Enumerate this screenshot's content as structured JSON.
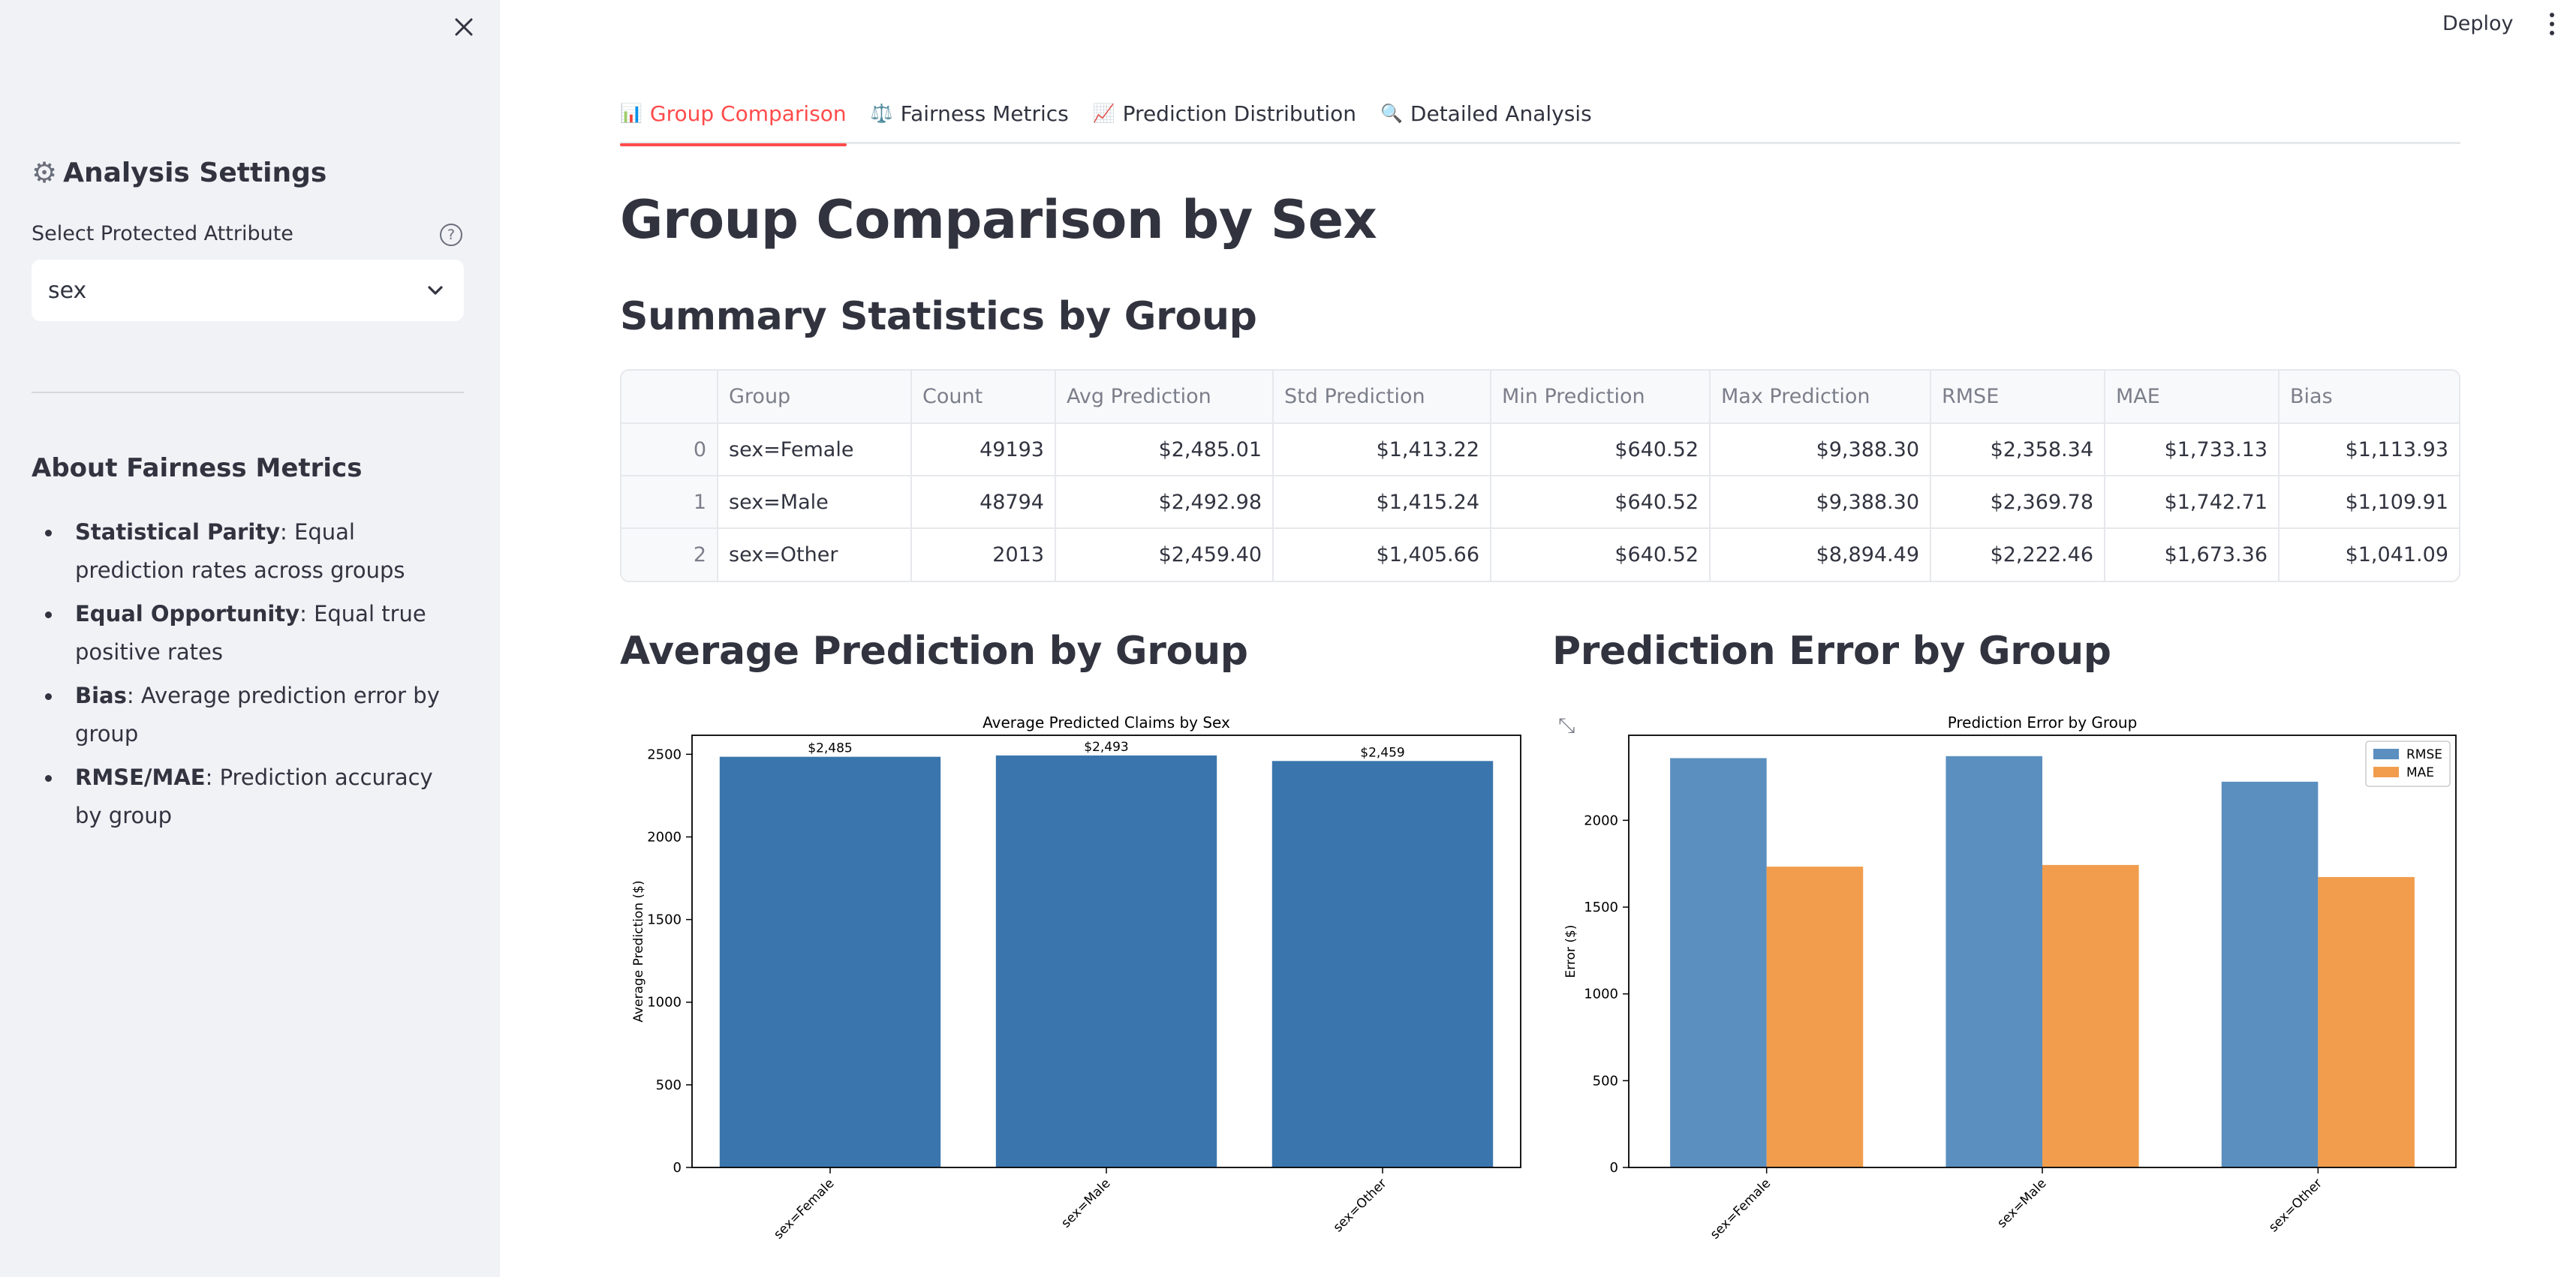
{
  "sidebar": {
    "close_icon": "close-icon",
    "title": "Analysis Settings",
    "title_icon": "gear-icon",
    "select_label": "Select Protected Attribute",
    "help_glyph": "?",
    "select_value": "sex",
    "about_title": "About Fairness Metrics",
    "metrics": [
      {
        "term": "Statistical Parity",
        "desc": ": Equal prediction rates across groups"
      },
      {
        "term": "Equal Opportunity",
        "desc": ": Equal true positive rates"
      },
      {
        "term": "Bias",
        "desc": ": Average prediction error by group"
      },
      {
        "term": "RMSE/MAE",
        "desc": ": Prediction accuracy by group"
      }
    ]
  },
  "header": {
    "deploy_label": "Deploy"
  },
  "tabs": [
    {
      "label": "Group Comparison",
      "icon": "📊",
      "active": true
    },
    {
      "label": "Fairness Metrics",
      "icon": "⚖️",
      "active": false
    },
    {
      "label": "Prediction Distribution",
      "icon": "📈",
      "active": false
    },
    {
      "label": "Detailed Analysis",
      "icon": "🔍",
      "active": false
    }
  ],
  "main": {
    "title": "Group Comparison by Sex",
    "summary_heading": "Summary Statistics by Group",
    "avg_heading": "Average Prediction by Group",
    "error_heading": "Prediction Error by Group"
  },
  "table": {
    "columns": [
      "",
      "Group",
      "Count",
      "Avg Prediction",
      "Std Prediction",
      "Min Prediction",
      "Max Prediction",
      "RMSE",
      "MAE",
      "Bias"
    ],
    "rows": [
      [
        "0",
        "sex=Female",
        "49193",
        "$2,485.01",
        "$1,413.22",
        "$640.52",
        "$9,388.30",
        "$2,358.34",
        "$1,733.13",
        "$1,113.93"
      ],
      [
        "1",
        "sex=Male",
        "48794",
        "$2,492.98",
        "$1,415.24",
        "$640.52",
        "$9,388.30",
        "$2,369.78",
        "$1,742.71",
        "$1,109.91"
      ],
      [
        "2",
        "sex=Other",
        "2013",
        "$2,459.40",
        "$1,405.66",
        "$640.52",
        "$8,894.49",
        "$2,222.46",
        "$1,673.36",
        "$1,041.09"
      ]
    ]
  },
  "colors": {
    "accent": "#ff4b4b",
    "bar_blue": "#3a76ad",
    "rmse_blue": "#5b8fbf",
    "mae_orange": "#f19d4d"
  },
  "chart_data": [
    {
      "type": "bar",
      "title": "Average Predicted Claims by Sex",
      "xlabel": "",
      "ylabel": "Average Prediction ($)",
      "categories": [
        "sex=Female",
        "sex=Male",
        "sex=Other"
      ],
      "values": [
        2485.01,
        2492.98,
        2459.4
      ],
      "data_labels": [
        "$2,485",
        "$2,493",
        "$2,459"
      ],
      "yticks": [
        0,
        500,
        1000,
        1500,
        2000,
        2500
      ],
      "ylim": [
        0,
        2615
      ],
      "grid": false
    },
    {
      "type": "bar",
      "title": "Prediction Error by Group",
      "xlabel": "",
      "ylabel": "Error ($)",
      "categories": [
        "sex=Female",
        "sex=Male",
        "sex=Other"
      ],
      "series": [
        {
          "name": "RMSE",
          "values": [
            2358.34,
            2369.78,
            2222.46
          ]
        },
        {
          "name": "MAE",
          "values": [
            1733.13,
            1742.71,
            1673.36
          ]
        }
      ],
      "yticks": [
        0,
        500,
        1000,
        1500,
        2000
      ],
      "ylim": [
        0,
        2490
      ],
      "legend": "top-right",
      "grid": false
    }
  ]
}
